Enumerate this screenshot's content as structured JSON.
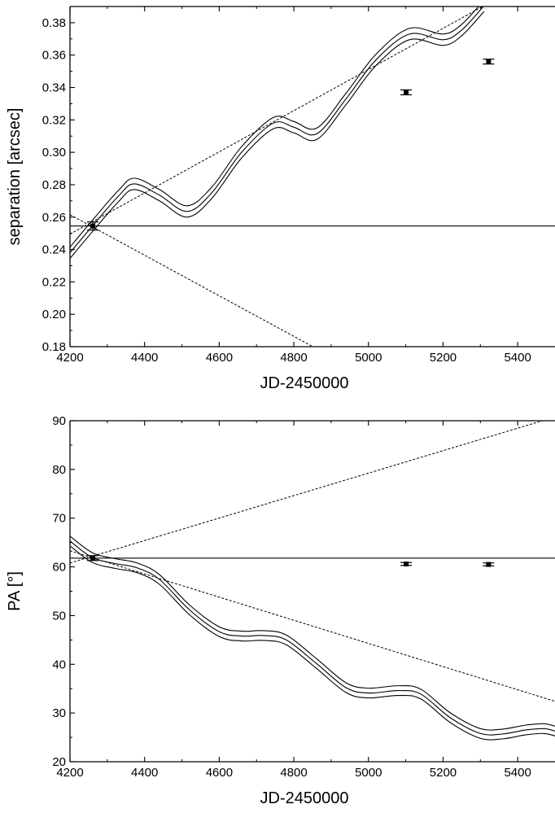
{
  "chart_data": [
    {
      "type": "line",
      "xlabel": "JD-2450000",
      "ylabel": "separation [arcsec]",
      "xlim": [
        4200,
        5500
      ],
      "ylim": [
        0.18,
        0.39
      ],
      "xticks": [
        4200,
        4400,
        4600,
        4800,
        5000,
        5200,
        5400
      ],
      "yticks": [
        0.18,
        0.2,
        0.22,
        0.24,
        0.26,
        0.28,
        0.3,
        0.32,
        0.34,
        0.36,
        0.38
      ],
      "xtick_labels": [
        "4200",
        "4400",
        "4600",
        "4800",
        "5000",
        "5200",
        "5400"
      ],
      "ytick_labels": [
        "0.18",
        "0.20",
        "0.22",
        "0.24",
        "0.26",
        "0.28",
        "0.30",
        "0.32",
        "0.34",
        "0.36",
        "0.38"
      ],
      "observations": [
        {
          "x": 4261,
          "y": 0.2545,
          "yerr": 0.0025
        },
        {
          "x": 5101,
          "y": 0.337,
          "yerr": 0.0015
        },
        {
          "x": 5322,
          "y": 0.356,
          "yerr": 0.0015
        }
      ],
      "hline": 0.2545,
      "dashed_lines": [
        {
          "x": [
            4200,
            5310
          ],
          "y": [
            0.2495,
            0.3905
          ]
        },
        {
          "x": [
            4200,
            4855
          ],
          "y": [
            0.2615,
            0.1795
          ]
        }
      ],
      "model_curve": {
        "x": [
          4200,
          4260,
          4330,
          4372,
          4440,
          4514,
          4580,
          4660,
          4745,
          4800,
          4862,
          4940,
          5020,
          5110,
          5200,
          5250,
          5310
        ],
        "y": [
          0.238,
          0.2545,
          0.273,
          0.2805,
          0.2735,
          0.2635,
          0.275,
          0.3,
          0.318,
          0.3155,
          0.3115,
          0.333,
          0.357,
          0.373,
          0.3695,
          0.3755,
          0.3905
        ],
        "band": 0.0035
      }
    },
    {
      "type": "line",
      "xlabel": "JD-2450000",
      "ylabel": "PA [°]",
      "xlim": [
        4200,
        5500
      ],
      "ylim": [
        20,
        90
      ],
      "xticks": [
        4200,
        4400,
        4600,
        4800,
        5000,
        5200,
        5400
      ],
      "yticks": [
        20,
        30,
        40,
        50,
        60,
        70,
        80,
        90
      ],
      "xtick_labels": [
        "4200",
        "4400",
        "4600",
        "4800",
        "5000",
        "5200",
        "5400"
      ],
      "ytick_labels": [
        "20",
        "30",
        "40",
        "50",
        "60",
        "70",
        "80",
        "90"
      ],
      "observations": [
        {
          "x": 4261,
          "y": 61.8,
          "yerr": 0.5
        },
        {
          "x": 5101,
          "y": 60.6,
          "yerr": 0.3
        },
        {
          "x": 5322,
          "y": 60.5,
          "yerr": 0.3
        }
      ],
      "hline": 61.8,
      "dashed_lines": [
        {
          "x": [
            4200,
            5475
          ],
          "y": [
            60.8,
            90.2
          ]
        },
        {
          "x": [
            4200,
            5500
          ],
          "y": [
            63.3,
            32.4
          ]
        }
      ],
      "model_curve": {
        "x": [
          4200,
          4260,
          4320,
          4380,
          4440,
          4520,
          4600,
          4660,
          4720,
          4780,
          4860,
          4940,
          5000,
          5080,
          5140,
          5220,
          5300,
          5360,
          5420,
          5470,
          5500
        ],
        "y": [
          65.3,
          61.9,
          60.7,
          59.8,
          57.4,
          51.2,
          46.7,
          45.8,
          45.9,
          45.0,
          40.2,
          35.2,
          34.1,
          34.6,
          33.9,
          29.0,
          25.8,
          25.7,
          26.5,
          26.8,
          26.3
        ],
        "band": 1.0
      }
    }
  ]
}
